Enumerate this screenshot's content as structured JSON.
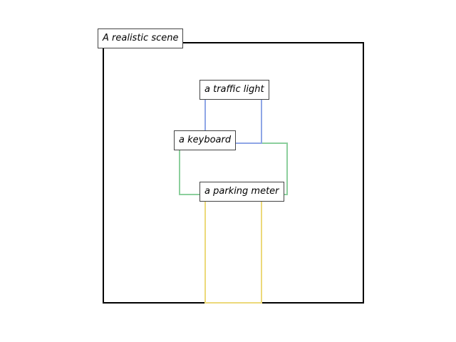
{
  "scene": {
    "label": "A realistic scene",
    "border_color": "#000000"
  },
  "objects": [
    {
      "label": "a traffic light",
      "color": "#8fa6e6"
    },
    {
      "label": "a keyboard",
      "color": "#8ccf9d"
    },
    {
      "label": "a parking meter",
      "color": "#ecd97a"
    }
  ]
}
